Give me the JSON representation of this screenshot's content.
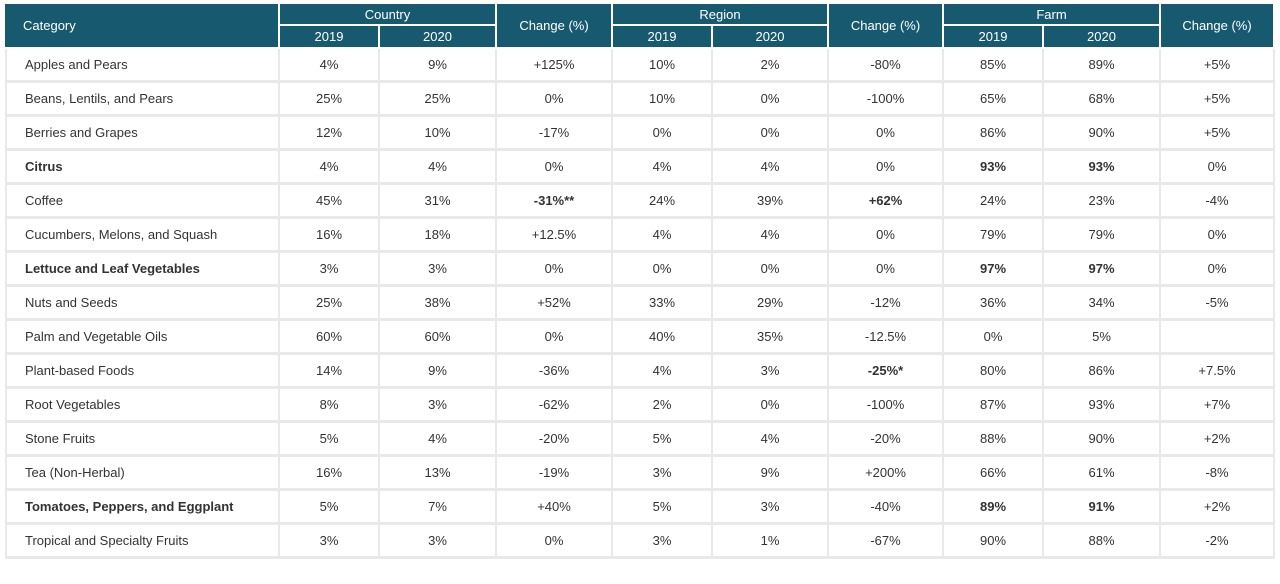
{
  "header": {
    "category": "Category",
    "groups": [
      "Country",
      "Region",
      "Farm"
    ],
    "change": "Change (%)",
    "years": [
      "2019",
      "2020"
    ]
  },
  "rows": [
    {
      "name": "Apples and Pears",
      "c19": "4%",
      "c20": "9%",
      "cch": "+125%",
      "r19": "10%",
      "r20": "2%",
      "rch": "-80%",
      "f19": "85%",
      "f20": "89%",
      "fch": "+5%"
    },
    {
      "name": "Beans, Lentils, and Pears",
      "c19": "25%",
      "c20": "25%",
      "cch": "0%",
      "r19": "10%",
      "r20": "0%",
      "rch": "-100%",
      "f19": "65%",
      "f20": "68%",
      "fch": "+5%"
    },
    {
      "name": "Berries and Grapes",
      "c19": "12%",
      "c20": "10%",
      "cch": "-17%",
      "r19": "0%",
      "r20": "0%",
      "rch": "0%",
      "f19": "86%",
      "f20": "90%",
      "fch": "+5%"
    },
    {
      "name": "Citrus",
      "c19": "4%",
      "c20": "4%",
      "cch": "0%",
      "r19": "4%",
      "r20": "4%",
      "rch": "0%",
      "f19": "93%",
      "f20": "93%",
      "fch": "0%"
    },
    {
      "name": "Coffee",
      "c19": "45%",
      "c20": "31%",
      "cch": "-31%**",
      "r19": "24%",
      "r20": "39%",
      "rch": "+62%",
      "f19": "24%",
      "f20": "23%",
      "fch": "-4%"
    },
    {
      "name": "Cucumbers, Melons, and Squash",
      "c19": "16%",
      "c20": "18%",
      "cch": "+12.5%",
      "r19": "4%",
      "r20": "4%",
      "rch": "0%",
      "f19": "79%",
      "f20": "79%",
      "fch": "0%"
    },
    {
      "name": "Lettuce and Leaf Vegetables",
      "c19": "3%",
      "c20": "3%",
      "cch": "0%",
      "r19": "0%",
      "r20": "0%",
      "rch": "0%",
      "f19": "97%",
      "f20": "97%",
      "fch": "0%"
    },
    {
      "name": "Nuts and Seeds",
      "c19": "25%",
      "c20": "38%",
      "cch": "+52%",
      "r19": "33%",
      "r20": "29%",
      "rch": "-12%",
      "f19": "36%",
      "f20": "34%",
      "fch": "-5%"
    },
    {
      "name": "Palm and Vegetable Oils",
      "c19": "60%",
      "c20": "60%",
      "cch": "0%",
      "r19": "40%",
      "r20": "35%",
      "rch": "-12.5%",
      "f19": "0%",
      "f20": "5%",
      "fch": ""
    },
    {
      "name": "Plant-based Foods",
      "c19": "14%",
      "c20": "9%",
      "cch": "-36%",
      "r19": "4%",
      "r20": "3%",
      "rch": "-25%*",
      "f19": "80%",
      "f20": "86%",
      "fch": "+7.5%"
    },
    {
      "name": "Root Vegetables",
      "c19": "8%",
      "c20": "3%",
      "cch": "-62%",
      "r19": "2%",
      "r20": "0%",
      "rch": "-100%",
      "f19": "87%",
      "f20": "93%",
      "fch": "+7%"
    },
    {
      "name": "Stone Fruits",
      "c19": "5%",
      "c20": "4%",
      "cch": "-20%",
      "r19": "5%",
      "r20": "4%",
      "rch": "-20%",
      "f19": "88%",
      "f20": "90%",
      "fch": "+2%"
    },
    {
      "name": "Tea (Non-Herbal)",
      "c19": "16%",
      "c20": "13%",
      "cch": "-19%",
      "r19": "3%",
      "r20": "9%",
      "rch": "+200%",
      "f19": "66%",
      "f20": "61%",
      "fch": "-8%"
    },
    {
      "name": "Tomatoes, Peppers, and Eggplant",
      "c19": "5%",
      "c20": "7%",
      "cch": "+40%",
      "r19": "5%",
      "r20": "3%",
      "rch": "-40%",
      "f19": "89%",
      "f20": "91%",
      "fch": "+2%"
    },
    {
      "name": "Tropical and Specialty Fruits",
      "c19": "3%",
      "c20": "3%",
      "cch": "0%",
      "r19": "3%",
      "r20": "1%",
      "rch": "-67%",
      "f19": "90%",
      "f20": "88%",
      "fch": "-2%"
    }
  ],
  "colors": {
    "header_bg": "#175a70",
    "header_text": "#ffffff",
    "grid": "#e9e9e9"
  }
}
